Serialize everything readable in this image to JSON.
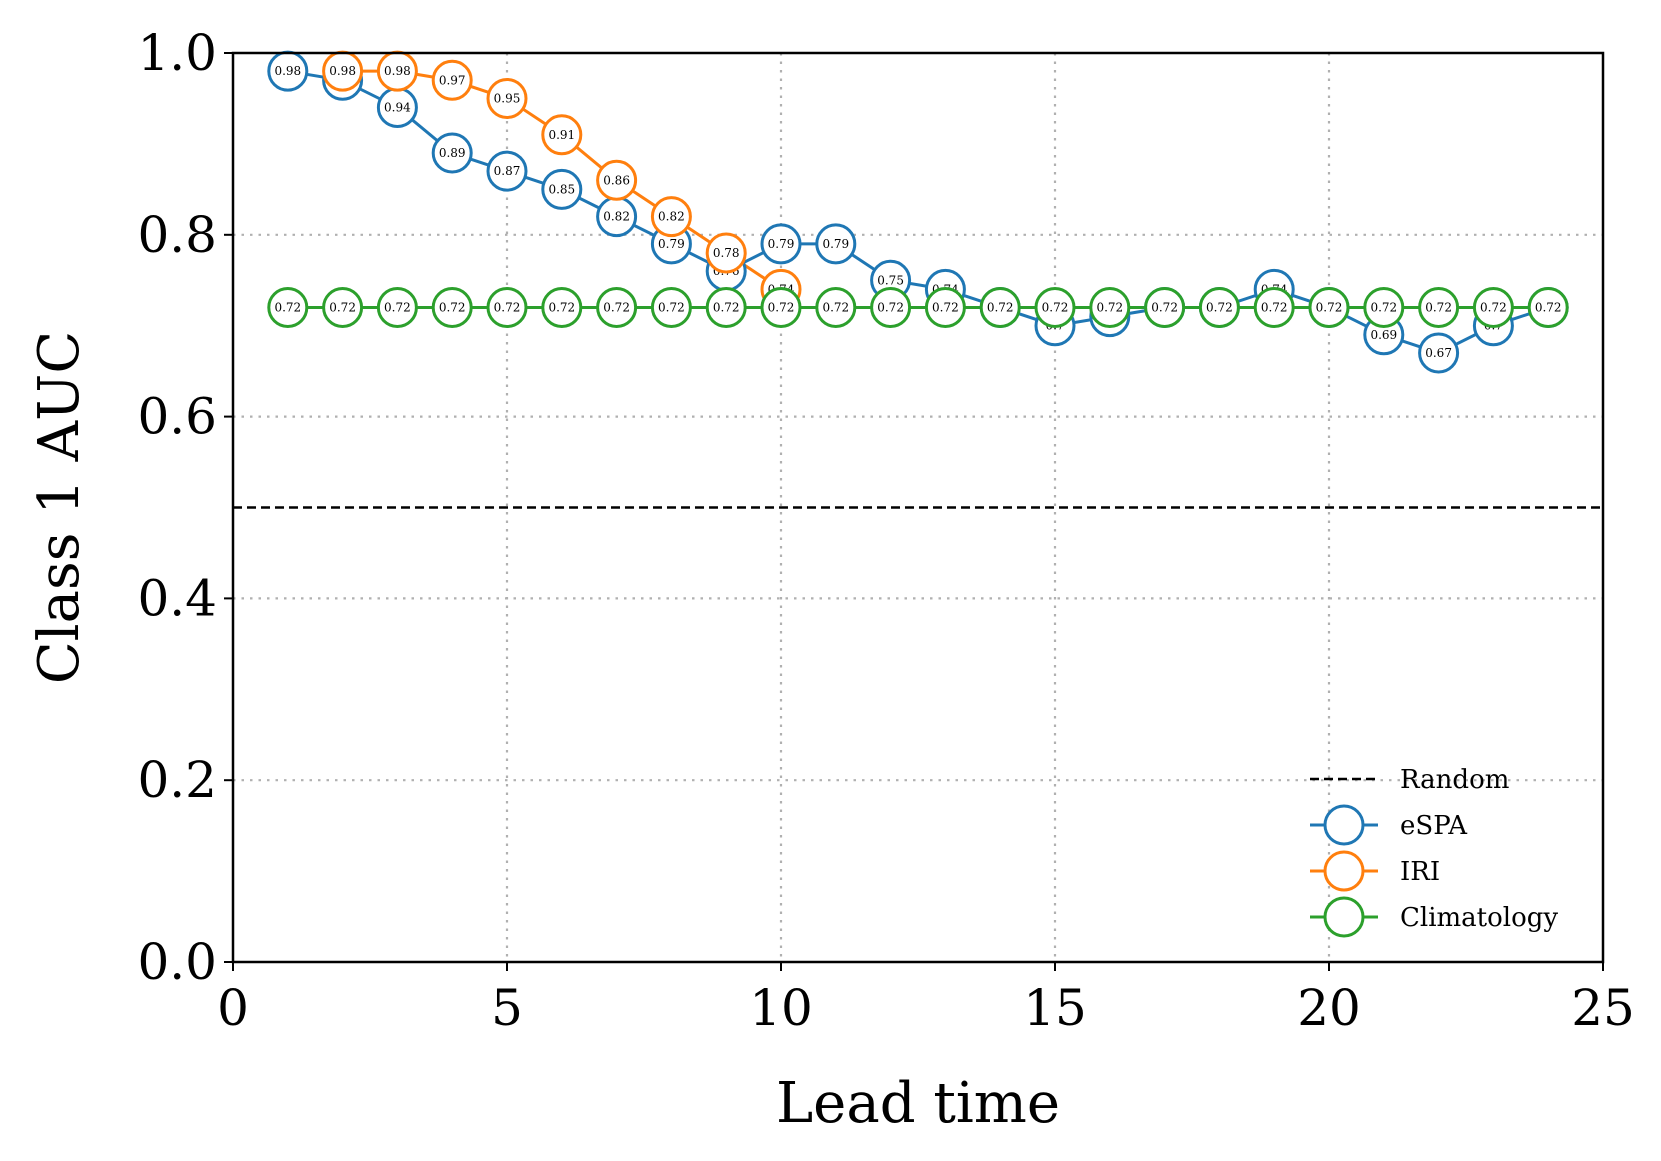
{
  "chart_data": {
    "type": "line",
    "title": "",
    "xlabel": "Lead time",
    "ylabel": "Class 1 AUC",
    "xlim": [
      0,
      25
    ],
    "ylim": [
      0,
      1
    ],
    "xticks": [
      0,
      5,
      10,
      15,
      20,
      25
    ],
    "yticks": [
      0.0,
      0.2,
      0.4,
      0.6,
      0.8,
      1.0
    ],
    "xtick_labels": [
      "0",
      "5",
      "10",
      "15",
      "20",
      "25"
    ],
    "ytick_labels": [
      "0.0",
      "0.2",
      "0.4",
      "0.6",
      "0.8",
      "1.0"
    ],
    "grid": true,
    "legend_position": "lower-right",
    "reference_line": {
      "name": "Random",
      "value": 0.5,
      "color": "#000000",
      "style": "dashed"
    },
    "series": [
      {
        "name": "eSPA",
        "color": "#1f77b4",
        "x": [
          1,
          2,
          3,
          4,
          5,
          6,
          7,
          8,
          9,
          10,
          11,
          12,
          13,
          14,
          15,
          16,
          17,
          18,
          19,
          20,
          21,
          22,
          23,
          24
        ],
        "values": [
          0.98,
          0.97,
          0.94,
          0.89,
          0.87,
          0.85,
          0.82,
          0.79,
          0.76,
          0.79,
          0.79,
          0.75,
          0.74,
          0.72,
          0.7,
          0.71,
          0.72,
          0.72,
          0.74,
          0.72,
          0.69,
          0.67,
          0.7,
          0.72
        ],
        "labels": [
          "0.98",
          "0.97",
          "0.94",
          "0.89",
          "0.87",
          "0.85",
          "0.82",
          "0.79",
          "0.76",
          "0.79",
          "0.79",
          "0.75",
          "0.74",
          "0.72",
          "0.7",
          "0.71",
          "0.72",
          "0.72",
          "0.74",
          "0.72",
          "0.69",
          "0.67",
          "0.7",
          "0.72"
        ]
      },
      {
        "name": "IRI",
        "color": "#ff7f0e",
        "x": [
          2,
          3,
          4,
          5,
          6,
          7,
          8,
          9,
          10
        ],
        "values": [
          0.98,
          0.98,
          0.97,
          0.95,
          0.91,
          0.86,
          0.82,
          0.78,
          0.74
        ],
        "labels": [
          "0.98",
          "0.98",
          "0.97",
          "0.95",
          "0.91",
          "0.86",
          "0.82",
          "0.78",
          "0.74"
        ]
      },
      {
        "name": "Climatology",
        "color": "#2ca02c",
        "x": [
          1,
          2,
          3,
          4,
          5,
          6,
          7,
          8,
          9,
          10,
          11,
          12,
          13,
          14,
          15,
          16,
          17,
          18,
          19,
          20,
          21,
          22,
          23,
          24
        ],
        "values": [
          0.72,
          0.72,
          0.72,
          0.72,
          0.72,
          0.72,
          0.72,
          0.72,
          0.72,
          0.72,
          0.72,
          0.72,
          0.72,
          0.72,
          0.72,
          0.72,
          0.72,
          0.72,
          0.72,
          0.72,
          0.72,
          0.72,
          0.72,
          0.72
        ],
        "labels": [
          "0.72",
          "0.72",
          "0.72",
          "0.72",
          "0.72",
          "0.72",
          "0.72",
          "0.72",
          "0.72",
          "0.72",
          "0.72",
          "0.72",
          "0.72",
          "0.72",
          "0.72",
          "0.72",
          "0.72",
          "0.72",
          "0.72",
          "0.72",
          "0.72",
          "0.72",
          "0.72",
          "0.72"
        ]
      }
    ],
    "legend": [
      "Random",
      "eSPA",
      "IRI",
      "Climatology"
    ]
  }
}
